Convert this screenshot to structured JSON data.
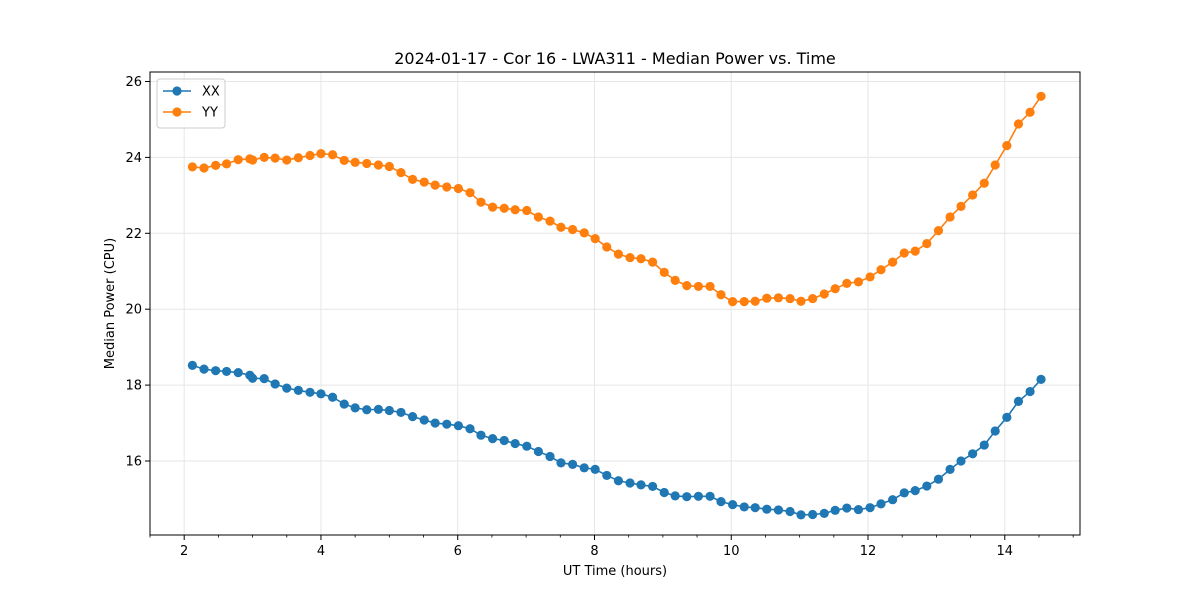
{
  "chart_data": {
    "type": "line",
    "title": "2024-01-17 - Cor 16 - LWA311 - Median Power vs. Time",
    "xlabel": "UT Time (hours)",
    "ylabel": "Median Power (CPU)",
    "xlim": [
      1.5,
      15.1
    ],
    "ylim": [
      14.05,
      26.25
    ],
    "xticks": [
      2,
      4,
      6,
      8,
      10,
      12,
      14
    ],
    "yticks": [
      16,
      18,
      20,
      22,
      24,
      26
    ],
    "grid": true,
    "legend_position": "top-left",
    "x": [
      2.12,
      2.29,
      2.46,
      2.62,
      2.79,
      2.96,
      3.0,
      3.17,
      3.33,
      3.5,
      3.67,
      3.84,
      4.0,
      4.17,
      4.34,
      4.5,
      4.67,
      4.84,
      5.0,
      5.17,
      5.34,
      5.51,
      5.67,
      5.84,
      6.01,
      6.18,
      6.34,
      6.51,
      6.68,
      6.84,
      7.01,
      7.18,
      7.35,
      7.51,
      7.68,
      7.85,
      8.01,
      8.18,
      8.35,
      8.52,
      8.68,
      8.85,
      9.02,
      9.18,
      9.35,
      9.52,
      9.69,
      9.85,
      10.02,
      10.19,
      10.35,
      10.52,
      10.69,
      10.86,
      11.02,
      11.19,
      11.36,
      11.52,
      11.69,
      11.86,
      12.03,
      12.19,
      12.36,
      12.53,
      12.69,
      12.86,
      13.03,
      13.2,
      13.36,
      13.53,
      13.7,
      13.86,
      14.03,
      14.2,
      14.37,
      14.53
    ],
    "series": [
      {
        "name": "XX",
        "color": "#1f77b4",
        "values": [
          18.52,
          18.42,
          18.38,
          18.36,
          18.33,
          18.26,
          18.18,
          18.17,
          18.03,
          17.92,
          17.86,
          17.81,
          17.77,
          17.68,
          17.5,
          17.4,
          17.35,
          17.36,
          17.33,
          17.28,
          17.17,
          17.08,
          17.0,
          16.97,
          16.93,
          16.85,
          16.68,
          16.59,
          16.54,
          16.46,
          16.39,
          16.25,
          16.12,
          15.95,
          15.91,
          15.82,
          15.78,
          15.62,
          15.48,
          15.42,
          15.37,
          15.33,
          15.17,
          15.08,
          15.06,
          15.07,
          15.07,
          14.93,
          14.85,
          14.79,
          14.77,
          14.73,
          14.71,
          14.67,
          14.58,
          14.59,
          14.62,
          14.7,
          14.76,
          14.72,
          14.77,
          14.87,
          14.98,
          15.16,
          15.22,
          15.34,
          15.52,
          15.78,
          16.0,
          16.19,
          16.42,
          16.79,
          17.15,
          17.57,
          17.83,
          18.15
        ]
      },
      {
        "name": "YY",
        "color": "#ff7f0e",
        "values": [
          23.75,
          23.72,
          23.79,
          23.83,
          23.94,
          23.96,
          23.93,
          24.0,
          23.98,
          23.93,
          23.99,
          24.05,
          24.1,
          24.07,
          23.92,
          23.87,
          23.84,
          23.8,
          23.76,
          23.6,
          23.42,
          23.35,
          23.27,
          23.22,
          23.18,
          23.07,
          22.82,
          22.69,
          22.66,
          22.62,
          22.6,
          22.43,
          22.32,
          22.16,
          22.1,
          22.01,
          21.86,
          21.64,
          21.45,
          21.36,
          21.33,
          21.24,
          20.97,
          20.76,
          20.62,
          20.6,
          20.6,
          20.38,
          20.2,
          20.2,
          20.21,
          20.29,
          20.3,
          20.28,
          20.21,
          20.28,
          20.4,
          20.54,
          20.68,
          20.72,
          20.85,
          21.04,
          21.24,
          21.48,
          21.53,
          21.73,
          22.07,
          22.43,
          22.71,
          23.01,
          23.32,
          23.8,
          24.31,
          24.88,
          25.19,
          25.61
        ]
      }
    ]
  }
}
